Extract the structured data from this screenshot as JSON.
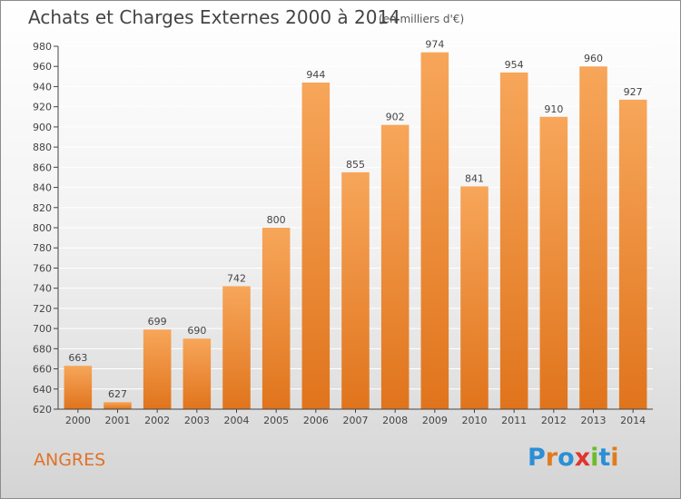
{
  "title": "Achats et Charges Externes 2000 à 2014",
  "subtitle": "(en milliers d'€)",
  "city": "ANGRES",
  "logo": {
    "text": "Proxiti",
    "letter_colors": [
      "#2b8fd6",
      "#e07b1f",
      "#2b8fd6",
      "#e0352b",
      "#6dbb2b",
      "#2b8fd6",
      "#e07b1f"
    ]
  },
  "colors": {
    "bar_top": "#f7a65a",
    "bar_bottom": "#e0741c",
    "axis": "#444444",
    "grid": "#ffffff",
    "city": "#e0722a"
  },
  "chart_data": {
    "type": "bar",
    "title": "Achats et Charges Externes 2000 à 2014",
    "subtitle": "(en milliers d'€)",
    "categories": [
      "2000",
      "2001",
      "2002",
      "2003",
      "2004",
      "2005",
      "2006",
      "2007",
      "2008",
      "2009",
      "2010",
      "2011",
      "2012",
      "2013",
      "2014"
    ],
    "values": [
      663,
      627,
      699,
      690,
      742,
      800,
      944,
      855,
      902,
      974,
      841,
      954,
      910,
      960,
      927
    ],
    "ylim": [
      620,
      980
    ],
    "ytick_step": 20,
    "grid": true,
    "xlabel": "",
    "ylabel": ""
  }
}
